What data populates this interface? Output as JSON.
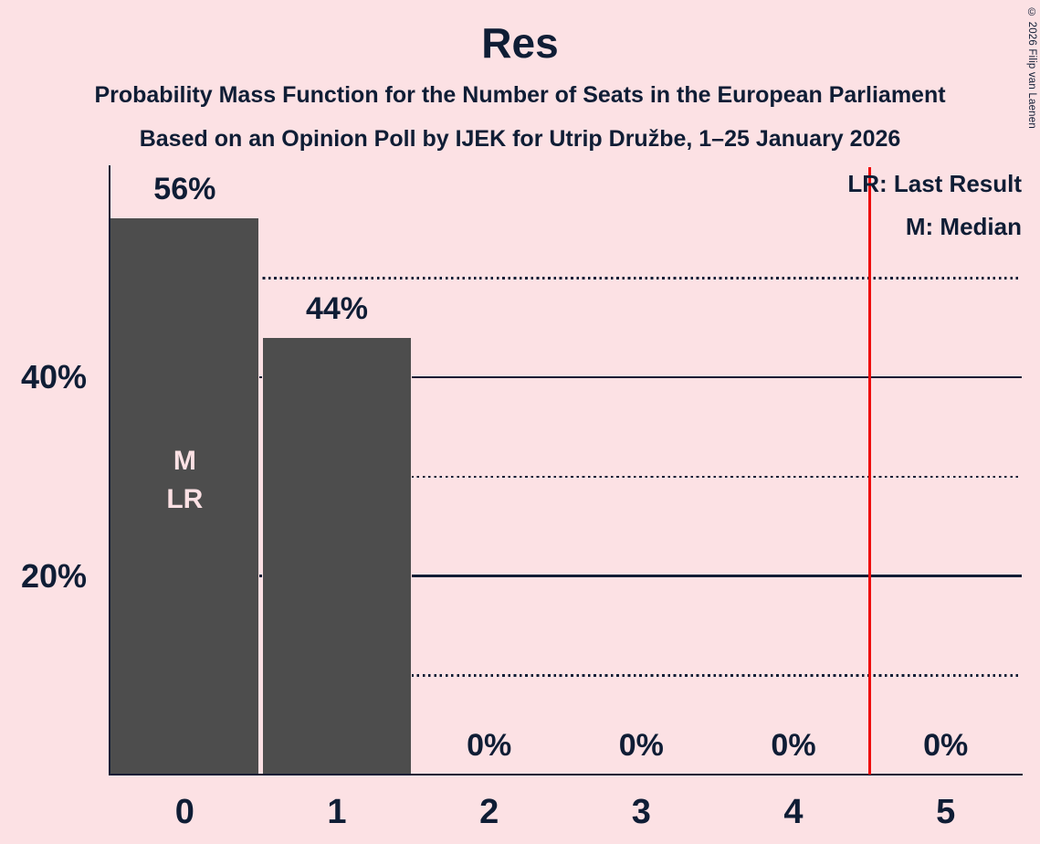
{
  "header": {
    "title": "Res",
    "subtitle1": "Probability Mass Function for the Number of Seats in the European Parliament",
    "subtitle2": "Based on an Opinion Poll by IJEK for Utrip Družbe, 1–25 January 2026"
  },
  "copyright": "© 2026 Filip van Laenen",
  "legend": {
    "lr": "LR: Last Result",
    "m": "M: Median"
  },
  "chart_data": {
    "type": "bar",
    "title": "Res",
    "categories": [
      "0",
      "1",
      "2",
      "3",
      "4",
      "5"
    ],
    "values": [
      56,
      44,
      0,
      0,
      0,
      0
    ],
    "value_labels": [
      "56%",
      "44%",
      "0%",
      "0%",
      "0%",
      "0%"
    ],
    "ylim": [
      0,
      61
    ],
    "yticks": [
      {
        "label": "40%",
        "value": 40
      },
      {
        "label": "20%",
        "value": 20
      }
    ],
    "gridlines": [
      {
        "value": 10,
        "style": "dotted"
      },
      {
        "value": 20,
        "style": "solid"
      },
      {
        "value": 30,
        "style": "dotted"
      },
      {
        "value": 40,
        "style": "solid"
      },
      {
        "value": 50,
        "style": "dotted"
      }
    ],
    "median_annotation": {
      "category": "0",
      "lines": [
        "M",
        "LR"
      ]
    },
    "last_result_line": {
      "x_position": 4.5
    },
    "legend_position": "top-right",
    "grid": "horizontal"
  },
  "colors": {
    "background": "#fce1e4",
    "bar": "#4d4d4d",
    "text": "#0f1d35",
    "last_result_line": "#ee0c0c",
    "bar_label": "#fce1e4"
  }
}
